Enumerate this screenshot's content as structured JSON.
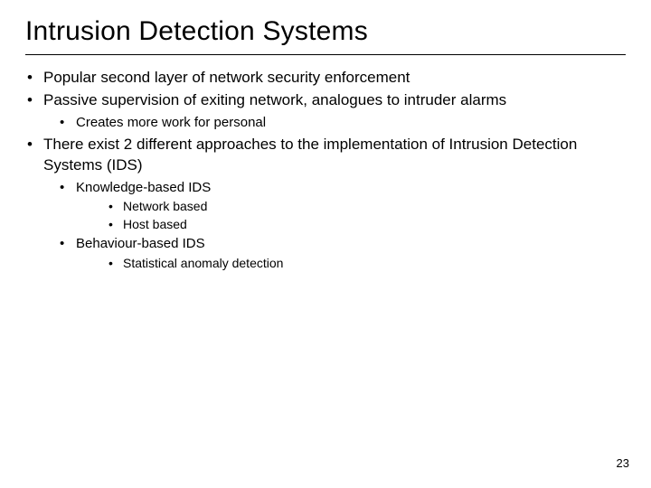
{
  "title": "Intrusion Detection Systems",
  "page_number": "23",
  "colors": {
    "background": "#ffffff",
    "text": "#000000",
    "rule": "#000000"
  },
  "typography": {
    "title_fontsize": 30,
    "lvl1_fontsize": 17,
    "lvl2_fontsize": 15,
    "lvl3_fontsize": 14,
    "font_family": "Verdana"
  },
  "bullets": {
    "b1": "Popular second layer of network security enforcement",
    "b2": "Passive supervision of exiting network, analogues to intruder alarms",
    "b2_1": "Creates more work for personal",
    "b3": "There exist 2 different approaches to the implementation of Intrusion Detection Systems (IDS)",
    "b3_1": "Knowledge-based IDS",
    "b3_1_1": "Network based",
    "b3_1_2": "Host based",
    "b3_2": "Behaviour-based IDS",
    "b3_2_1": "Statistical anomaly detection"
  }
}
